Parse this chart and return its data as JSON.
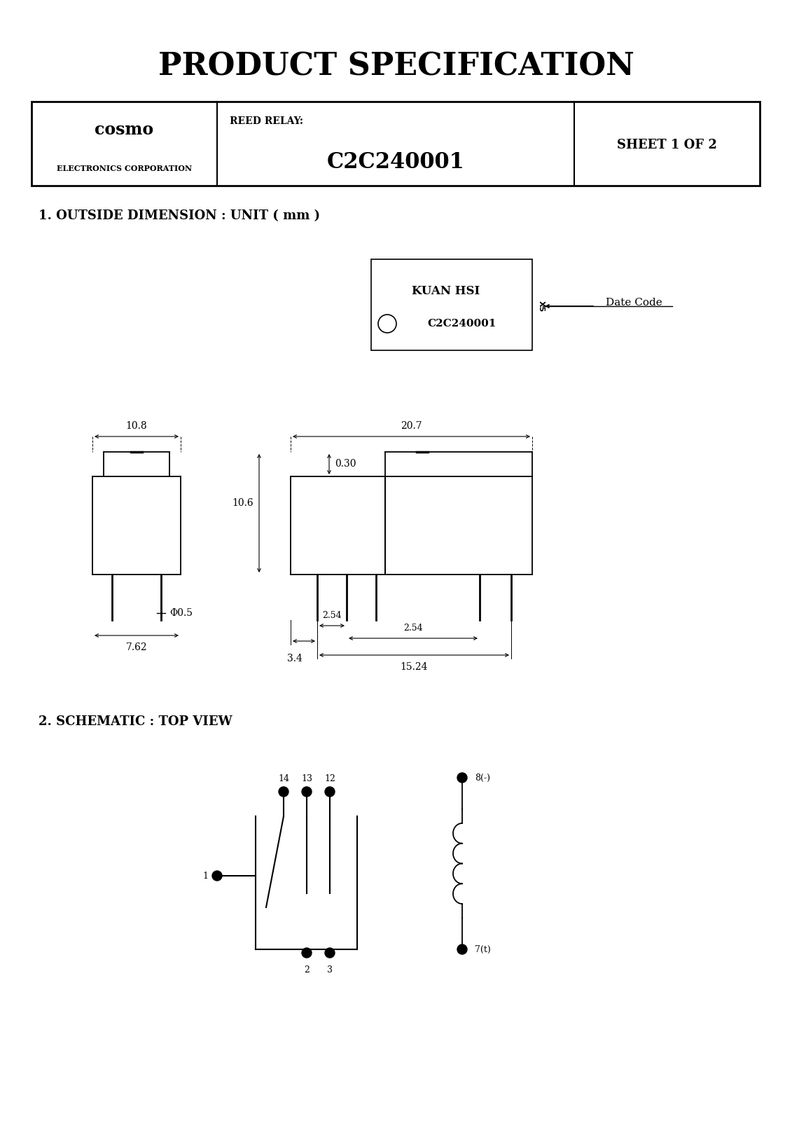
{
  "title": "PRODUCT SPECIFICATION",
  "company_name": "cosmo",
  "company_sub": "ELECTRONICS CORPORATION",
  "product_label": "REED RELAY:",
  "product_name": "C2C240001",
  "sheet_info": "SHEET 1 OF 2",
  "section1": "1. OUTSIDE DIMENSION : UNIT ( mm )",
  "section2": "2. SCHEMATIC : TOP VIEW",
  "label_box_title": "KUAN HSI",
  "label_box_model": "C2C240001",
  "label_box_side": "X5",
  "label_box_arrow": "Date Code",
  "dim_width_front": "10.8",
  "dim_width_side": "20.7",
  "dim_height_side": "10.6",
  "dim_pin_offset": "0.30",
  "dim_pin_spacing1": "3.4",
  "dim_pin_spacing2": "2.54",
  "dim_pin_spacing3": "2.54",
  "dim_total_width": "15.24",
  "dim_pin_dia": "Φ0.5",
  "dim_base_width": "7.62",
  "bg_color": "#ffffff",
  "line_color": "#000000"
}
